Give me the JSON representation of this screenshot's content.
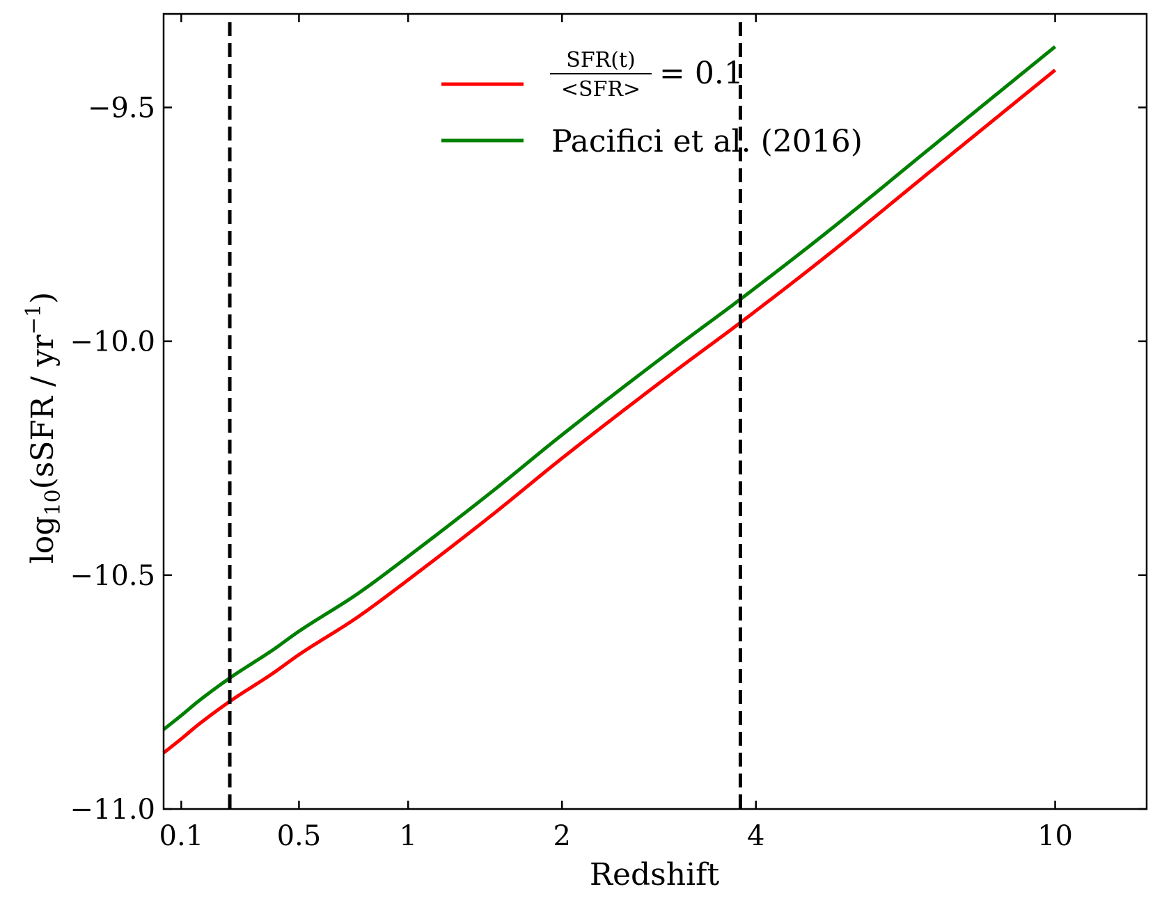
{
  "chart_data": {
    "type": "line",
    "xlabel": "Redshift",
    "ylabel": {
      "prefix": "log",
      "sub": "10",
      "body": "(sSFR / yr",
      "sup": "−1",
      "suffix": ")"
    },
    "xscale": "log(1+z)",
    "xlim": [
      0.05,
      13
    ],
    "ylim": [
      -11.0,
      -9.3
    ],
    "x_ticks": [
      0.1,
      0.5,
      1,
      2,
      4,
      10
    ],
    "x_tick_labels": [
      "0.1",
      "0.5",
      "1",
      "2",
      "4",
      "10"
    ],
    "y_ticks": [
      -11.0,
      -10.5,
      -10.0,
      -9.5
    ],
    "y_tick_labels": [
      "−11.0",
      "−10.5",
      "−10.0",
      "−9.5"
    ],
    "grid": false,
    "legend_position": "top-center",
    "vlines": [
      {
        "x": 0.25,
        "style": "dashed",
        "color": "#000000"
      },
      {
        "x": 3.8,
        "style": "dashed",
        "color": "#000000"
      }
    ],
    "series": [
      {
        "name": {
          "numerator": "SFR(t)",
          "denominator": "<SFR>",
          "suffix": "= 0.1"
        },
        "color": "#ff0000",
        "x": [
          0.05,
          0.1,
          0.15,
          0.25,
          0.4,
          0.5,
          0.75,
          1.0,
          1.5,
          2.0,
          3.0,
          3.8,
          5.0,
          7.0,
          10.0
        ],
        "y": [
          -10.88,
          -10.85,
          -10.82,
          -10.77,
          -10.71,
          -10.67,
          -10.59,
          -10.51,
          -10.37,
          -10.25,
          -10.07,
          -9.96,
          -9.82,
          -9.63,
          -9.42
        ]
      },
      {
        "name": "Pacifici et al. (2016)",
        "color": "#008000",
        "x": [
          0.05,
          0.1,
          0.15,
          0.25,
          0.4,
          0.5,
          0.75,
          1.0,
          1.5,
          2.0,
          3.0,
          3.8,
          5.0,
          7.0,
          10.0
        ],
        "y": [
          -10.83,
          -10.8,
          -10.77,
          -10.72,
          -10.66,
          -10.62,
          -10.54,
          -10.46,
          -10.32,
          -10.2,
          -10.02,
          -9.91,
          -9.77,
          -9.58,
          -9.37
        ]
      }
    ]
  }
}
